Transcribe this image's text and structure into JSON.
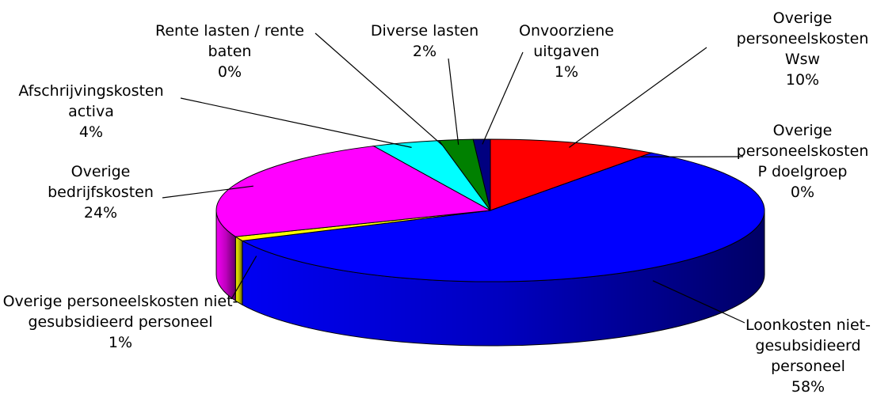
{
  "chart_data": {
    "type": "pie3d",
    "categories": [
      "Overige personeelskosten Wsw",
      "Overige personeelskosten P doelgroep",
      "Loonkosten niet-gesubsidieerd personeel",
      "Overige personeelskosten niet-gesubsidieerd personeel",
      "Overige bedrijfskosten",
      "Afschrijvingskosten activa",
      "Rente lasten / rente baten",
      "Diverse lasten",
      "Onvoorziene uitgaven"
    ],
    "values": [
      10,
      0,
      58,
      1,
      24,
      4,
      0,
      2,
      1
    ],
    "value_labels": [
      "10%",
      "0%",
      "58%",
      "1%",
      "24%",
      "4%",
      "0%",
      "2%",
      "1%"
    ],
    "colors": [
      "#ff0000",
      "#ffff99",
      "#0000ff",
      "#ffff00",
      "#ff00ff",
      "#00ffff",
      "#800080",
      "#008000",
      "#000080"
    ]
  }
}
